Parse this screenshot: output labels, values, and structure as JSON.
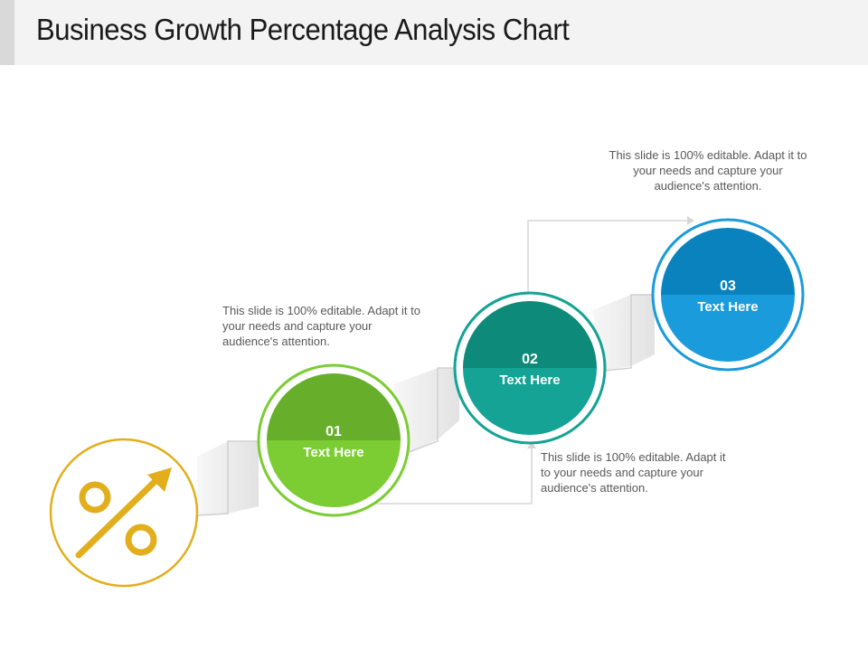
{
  "title": "Business Growth Percentage Analysis Chart",
  "icon": {
    "name": "percent-growth-icon",
    "color": "#E2AE1C"
  },
  "steps": [
    {
      "number": "01",
      "label": "Text Here",
      "description": "This slide is 100% editable. Adapt it to your needs and capture your audience's attention.",
      "color_top": "#67AF2A",
      "color_bottom": "#7CCC34",
      "ring_color": "#7CCC34"
    },
    {
      "number": "02",
      "label": "Text Here",
      "description": "This slide is 100% editable. Adapt it to your needs and capture your audience's attention.",
      "color_top": "#0E8A7A",
      "color_bottom": "#14A394",
      "ring_color": "#14A394"
    },
    {
      "number": "03",
      "label": "Text Here",
      "description": "This slide is 100% editable. Adapt it to your needs and capture your audience's attention.",
      "color_top": "#0A82BE",
      "color_bottom": "#1A9BDB",
      "ring_color": "#1A9BDB"
    }
  ]
}
